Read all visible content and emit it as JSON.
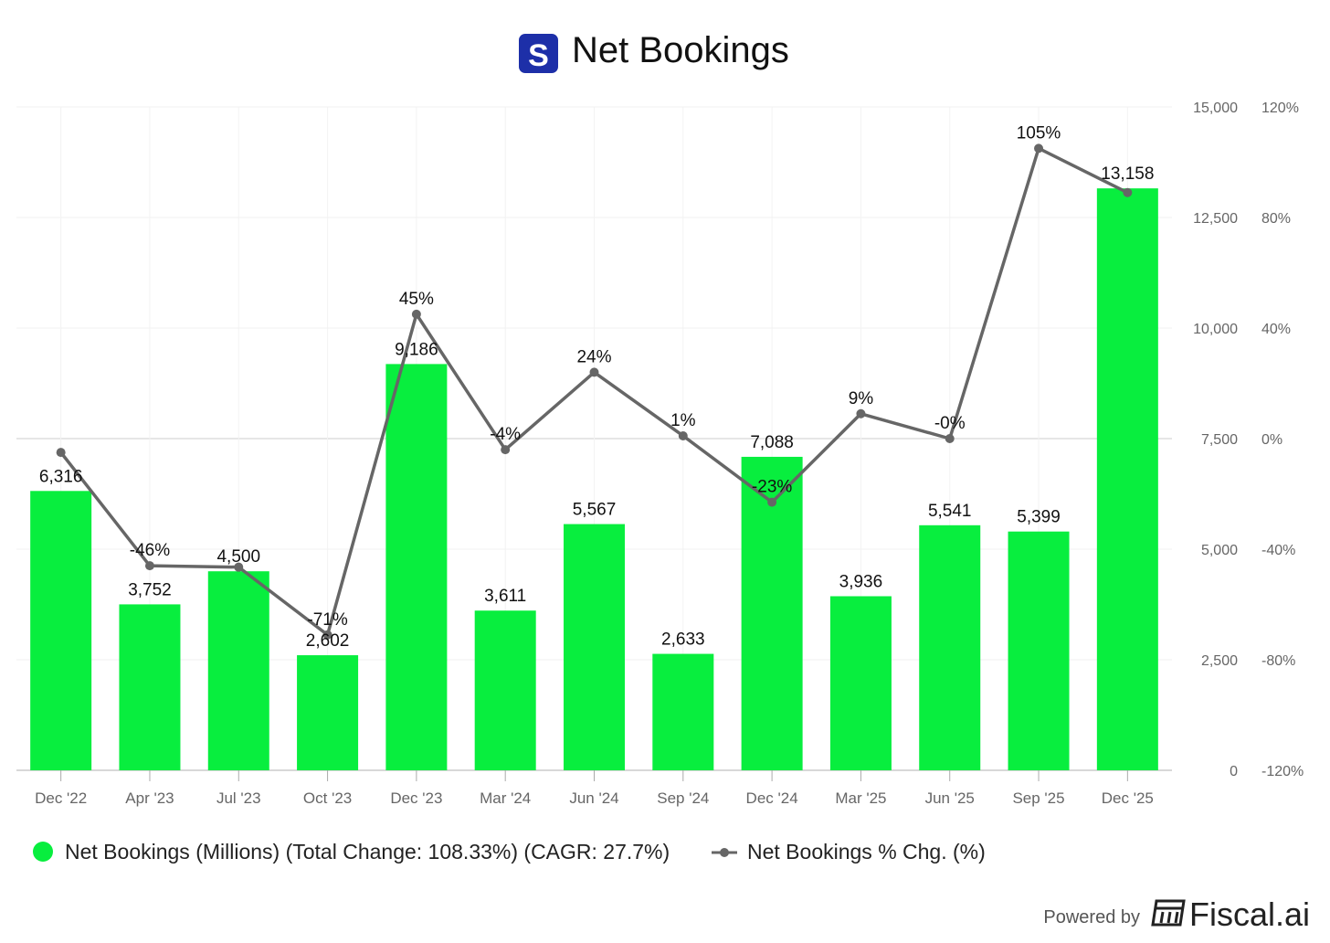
{
  "header": {
    "title": "Net Bookings",
    "logo_letter": "S"
  },
  "chart_data": {
    "type": "bar",
    "title": "Net Bookings",
    "categories": [
      "Dec '22",
      "Apr '23",
      "Jul '23",
      "Oct '23",
      "Dec '23",
      "Mar '24",
      "Jun '24",
      "Sep '24",
      "Dec '24",
      "Mar '25",
      "Jun '25",
      "Sep '25",
      "Dec '25"
    ],
    "series": [
      {
        "name": "Net Bookings (Millions) (Total Change: 108.33%) (CAGR: 27.7%)",
        "kind": "bar",
        "axis": "left",
        "color": "#08ee3e",
        "values": [
          6316,
          3752,
          4500,
          2602,
          9186,
          3611,
          5567,
          2633,
          7088,
          3936,
          5541,
          5399,
          13158
        ],
        "labels": [
          "6,316",
          "3,752",
          "4,500",
          "2,602",
          "9,186",
          "3,611",
          "5,567",
          "2,633",
          "7,088",
          "3,936",
          "5,541",
          "5,399",
          "13,158"
        ]
      },
      {
        "name": "Net Bookings % Chg. (%)",
        "kind": "line",
        "axis": "right",
        "color": "#666666",
        "values": [
          -5,
          -46,
          -46.5,
          -71,
          45,
          -4,
          24,
          1,
          -23,
          9,
          0,
          105,
          89
        ],
        "labels": [
          "",
          "-46%",
          "",
          "-71%",
          "45%",
          "-4%",
          "24%",
          "1%",
          "-23%",
          "9%",
          "-0%",
          "105%",
          ""
        ]
      }
    ],
    "left_axis": {
      "min": 0,
      "max": 15000,
      "ticks": [
        0,
        2500,
        5000,
        7500,
        10000,
        12500,
        15000
      ],
      "tick_labels": [
        "0",
        "2,500",
        "5,000",
        "7,500",
        "10,000",
        "12,500",
        "15,000"
      ]
    },
    "right_axis": {
      "min": -120,
      "max": 120,
      "ticks": [
        -120,
        -80,
        -40,
        0,
        40,
        80,
        120
      ],
      "tick_labels": [
        "-120%",
        "-80%",
        "-40%",
        "0%",
        "40%",
        "80%",
        "120%"
      ]
    },
    "grid": true,
    "legend_position": "bottom"
  },
  "footer": {
    "powered_by": "Powered by",
    "brand": "Fiscal.ai"
  }
}
